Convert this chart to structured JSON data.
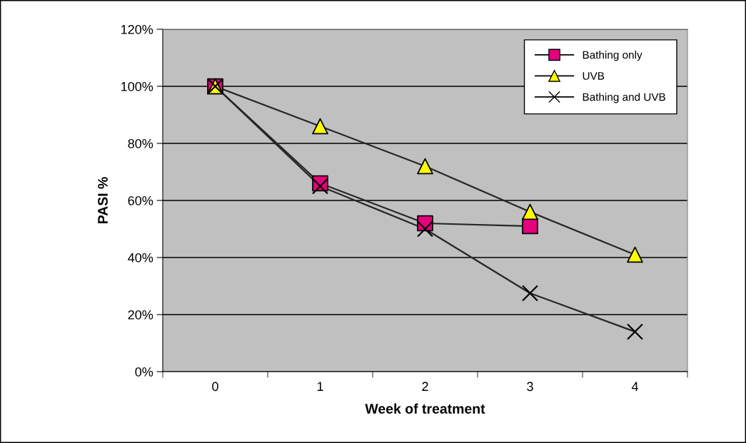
{
  "chart_data": {
    "type": "line",
    "xlabel": "Week of treatment",
    "ylabel": "PASI %",
    "categories": [
      "0",
      "1",
      "2",
      "3",
      "4"
    ],
    "series": [
      {
        "name": "Bathing only",
        "color": "#e5007d",
        "marker": "square",
        "values": [
          100,
          66,
          52,
          51,
          null
        ]
      },
      {
        "name": "UVB",
        "color": "#ffff00",
        "marker": "triangle",
        "values": [
          100,
          86,
          72,
          56,
          41
        ]
      },
      {
        "name": "Bathing and UVB",
        "color": "#000000",
        "marker": "cross",
        "values": [
          100,
          65,
          50,
          27.5,
          14
        ]
      }
    ],
    "ylim": [
      0,
      120
    ],
    "yticks": [
      {
        "value": 0,
        "label": "0%"
      },
      {
        "value": 20,
        "label": "20%"
      },
      {
        "value": 40,
        "label": "40%"
      },
      {
        "value": 60,
        "label": "60%"
      },
      {
        "value": 80,
        "label": "80%"
      },
      {
        "value": 100,
        "label": "100%"
      },
      {
        "value": 120,
        "label": "120%"
      }
    ],
    "grid": "y",
    "legend": "top right"
  }
}
